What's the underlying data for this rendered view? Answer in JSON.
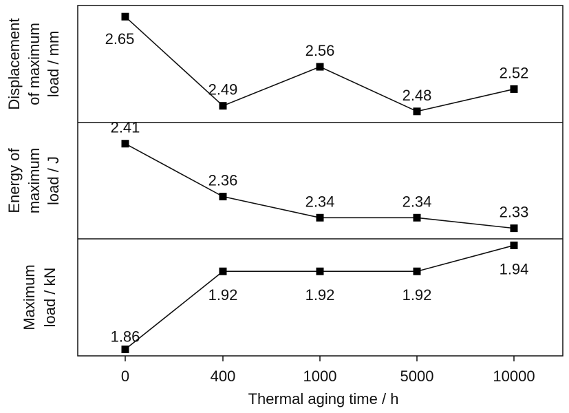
{
  "chart_data": {
    "type": "line",
    "xlabel": "Thermal aging time / h",
    "x": [
      "0",
      "400",
      "1000",
      "5000",
      "10000"
    ],
    "panels": [
      {
        "ylabel_lines": [
          "Displacement",
          "of maximum",
          "load / mm"
        ],
        "values": [
          2.65,
          2.49,
          2.56,
          2.48,
          2.52
        ],
        "labels": [
          "2.65",
          "2.49",
          "2.56",
          "2.48",
          "2.52"
        ],
        "label_pos": [
          "below",
          "above",
          "above",
          "above",
          "above"
        ]
      },
      {
        "ylabel_lines": [
          "Energy of",
          "maximum",
          "load / J"
        ],
        "values": [
          2.41,
          2.36,
          2.34,
          2.34,
          2.33
        ],
        "labels": [
          "2.41",
          "2.36",
          "2.34",
          "2.34",
          "2.33"
        ],
        "label_pos": [
          "above",
          "above",
          "above",
          "above",
          "above"
        ]
      },
      {
        "ylabel_lines": [
          "Maximum",
          "load / kN"
        ],
        "values": [
          1.86,
          1.92,
          1.92,
          1.92,
          1.94
        ],
        "labels": [
          "1.86",
          "1.92",
          "1.92",
          "1.92",
          "1.94"
        ],
        "label_pos": [
          "above",
          "below",
          "below",
          "below",
          "below"
        ]
      }
    ],
    "grid": false,
    "legend": "none"
  }
}
